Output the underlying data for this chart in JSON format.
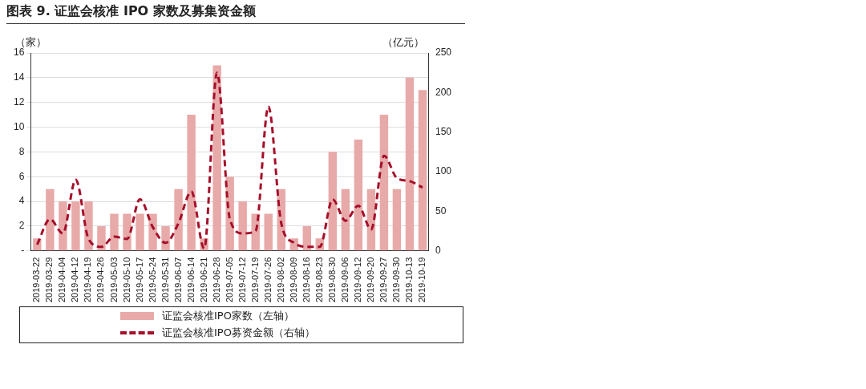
{
  "chart_data": {
    "type": "bar",
    "title": "图表 9. 证监会核准 IPO 家数及募集资金额",
    "ylabel": "（家）",
    "y2label": "（亿元）",
    "categories": [
      "2019-03-22",
      "2019-03-29",
      "2019-04-04",
      "2019-04-12",
      "2019-04-19",
      "2019-04-26",
      "2019-05-03",
      "2019-05-10",
      "2019-05-17",
      "2019-05-24",
      "2019-05-31",
      "2019-06-07",
      "2019-06-14",
      "2019-06-21",
      "2019-06-28",
      "2019-07-05",
      "2019-07-12",
      "2019-07-19",
      "2019-07-26",
      "2019-08-02",
      "2019-08-09",
      "2019-08-16",
      "2019-08-23",
      "2019-08-30",
      "2019-09-06",
      "2019-09-12",
      "2019-09-20",
      "2019-09-27",
      "2019-09-30",
      "2019-10-13",
      "2019-10-19"
    ],
    "series": [
      {
        "name": "证监会核准IPO家数（左轴）",
        "color": "#e8a9a9",
        "values": [
          1,
          5,
          4,
          4,
          4,
          2,
          3,
          3,
          3,
          3,
          2,
          5,
          11,
          1,
          15,
          6,
          4,
          3,
          3,
          5,
          1,
          2,
          1,
          8,
          5,
          9,
          5,
          11,
          5,
          14,
          13
        ]
      },
      {
        "name": "证监会核准IPO募资金额（右轴）",
        "type": "line",
        "axis": "y2",
        "color": "#a50f2a",
        "line_style": "dashed",
        "values": [
          8,
          40,
          22,
          90,
          15,
          5,
          18,
          15,
          65,
          30,
          10,
          35,
          75,
          3,
          225,
          40,
          22,
          25,
          182,
          35,
          10,
          5,
          5,
          65,
          38,
          57,
          27,
          120,
          92,
          88,
          80
        ]
      }
    ],
    "ylim": [
      0,
      16
    ],
    "yticks": [
      {
        "value": 0,
        "label": "-"
      },
      2,
      4,
      6,
      8,
      10,
      12,
      14,
      16
    ],
    "y2lim": [
      0,
      250
    ],
    "y2ticks": [
      0,
      50,
      100,
      150,
      200,
      250
    ],
    "grid": "y",
    "legend": "bottom",
    "marker": "none"
  }
}
